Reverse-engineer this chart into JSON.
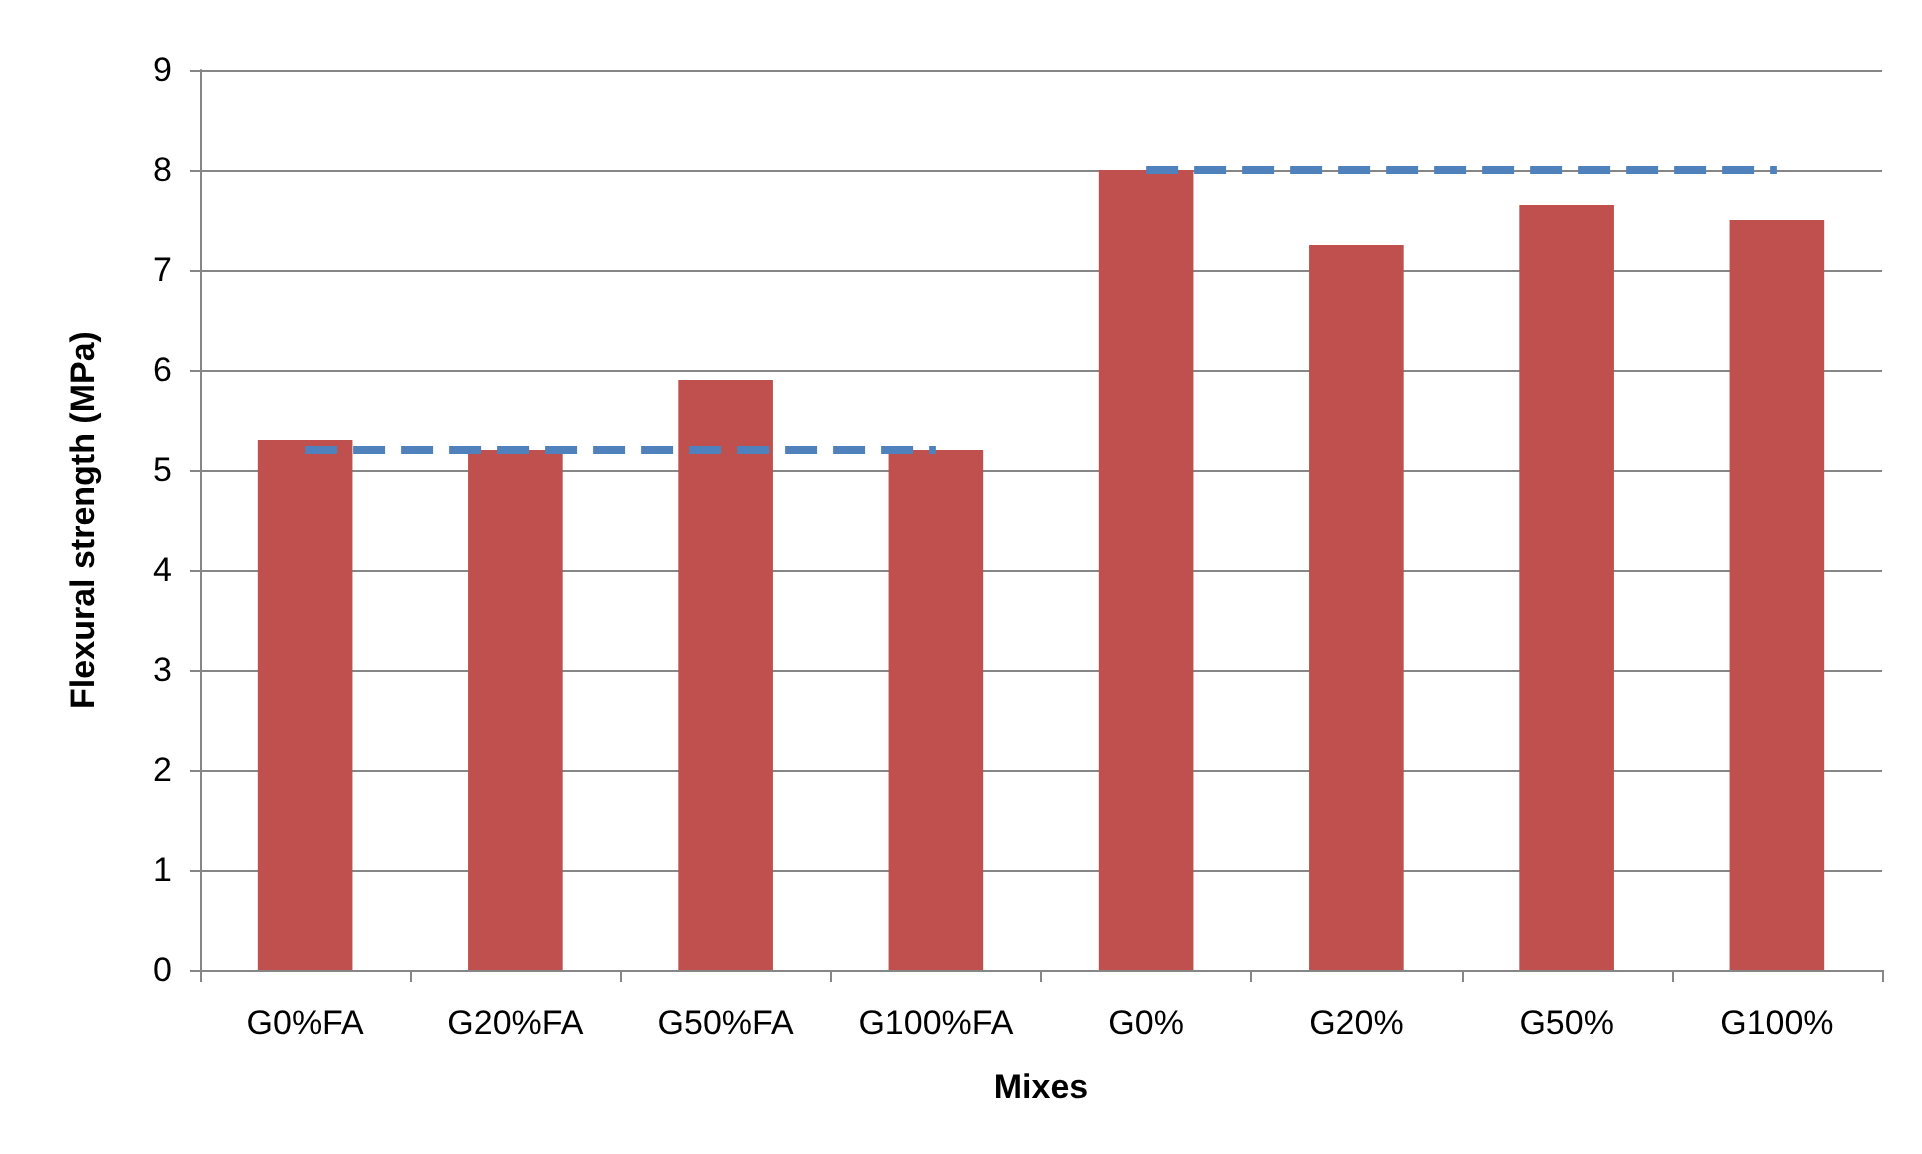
{
  "chart_data": {
    "type": "bar",
    "xlabel": "Mixes",
    "ylabel": "Flexural strength (MPa)",
    "categories": [
      "G0%FA",
      "G20%FA",
      "G50%FA",
      "G100%FA",
      "G0%",
      "G20%",
      "G50%",
      "G100%"
    ],
    "series": [
      {
        "color": "#c0504d",
        "values": [
          5.3,
          5.2,
          5.9,
          5.2,
          8.0,
          7.25,
          7.65,
          7.5
        ]
      },
      {
        "type": "line",
        "color": "#4f81bd",
        "line_style": "dashed",
        "marker": "none",
        "x": [
          "G0%FA",
          "G20%FA",
          "G50%FA",
          "G100%FA"
        ],
        "values": [
          5.2,
          5.2,
          5.2,
          5.2
        ]
      },
      {
        "type": "line",
        "color": "#4f81bd",
        "line_style": "dashed",
        "marker": "none",
        "x": [
          "G0%",
          "G20%",
          "G50%",
          "G100%"
        ],
        "values": [
          8.0,
          8.0,
          8.0,
          8.0
        ]
      }
    ],
    "ylim": [
      0,
      9
    ],
    "yticks": [
      0,
      1,
      2,
      3,
      4,
      5,
      6,
      7,
      8,
      9
    ],
    "grid": "y"
  }
}
